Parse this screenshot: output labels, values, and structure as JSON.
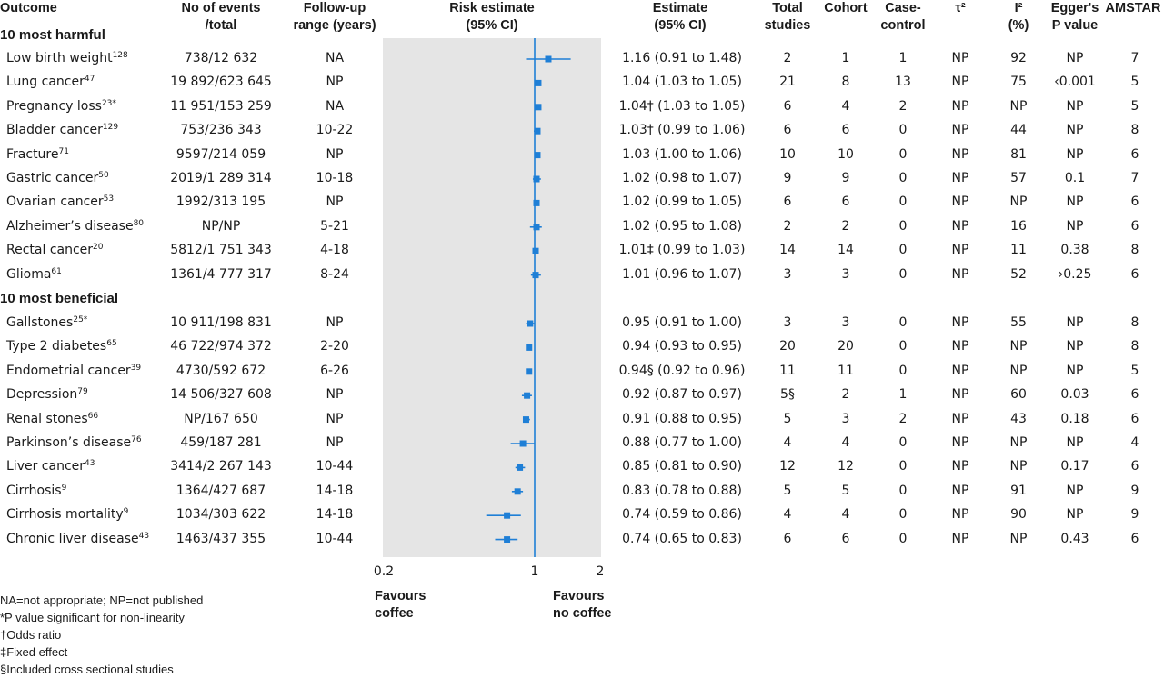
{
  "headers": {
    "outcome": "Outcome",
    "events": [
      "No of events",
      "/total"
    ],
    "followup": [
      "Follow-up",
      "range (years)"
    ],
    "risk": [
      "Risk estimate",
      "(95% CI)"
    ],
    "estimate": [
      "Estimate",
      "(95% CI)"
    ],
    "total": [
      "Total",
      "studies"
    ],
    "cohort": "Cohort",
    "casecontrol": [
      "Case-",
      "control"
    ],
    "tau": "τ²",
    "i2": [
      "I²",
      "(%)"
    ],
    "egger": [
      "Egger's",
      "P value"
    ],
    "amstar": "AMSTAR"
  },
  "sections": {
    "harmful": "10 most harmful",
    "beneficial": "10 most beneficial"
  },
  "rows": [
    {
      "outcome": "Low birth weight",
      "ref": "128",
      "events": "738/12 632",
      "followup": "NA",
      "estimate": "1.16 (0.91 to 1.48)",
      "total": "2",
      "cohort": "1",
      "casecontrol": "1",
      "tau": "NP",
      "i2": "92",
      "egger": "NP",
      "amstar": "7"
    },
    {
      "outcome": "Lung cancer",
      "ref": "47",
      "events": "19 892/623 645",
      "followup": "NP",
      "estimate": "1.04 (1.03 to 1.05)",
      "total": "21",
      "cohort": "8",
      "casecontrol": "13",
      "tau": "NP",
      "i2": "75",
      "egger": "‹0.001",
      "amstar": "5"
    },
    {
      "outcome": "Pregnancy loss",
      "ref": "23*",
      "events": "11 951/153 259",
      "followup": "NA",
      "estimate": "1.04† (1.03 to 1.05)",
      "total": "6",
      "cohort": "4",
      "casecontrol": "2",
      "tau": "NP",
      "i2": "NP",
      "egger": "NP",
      "amstar": "5"
    },
    {
      "outcome": "Bladder cancer",
      "ref": "129",
      "events": "753/236 343",
      "followup": "10-22",
      "estimate": "1.03† (0.99 to 1.06)",
      "total": "6",
      "cohort": "6",
      "casecontrol": "0",
      "tau": "NP",
      "i2": "44",
      "egger": "NP",
      "amstar": "8"
    },
    {
      "outcome": "Fracture",
      "ref": "71",
      "events": "9597/214 059",
      "followup": "NP",
      "estimate": "1.03 (1.00 to 1.06)",
      "total": "10",
      "cohort": "10",
      "casecontrol": "0",
      "tau": "NP",
      "i2": "81",
      "egger": "NP",
      "amstar": "6"
    },
    {
      "outcome": "Gastric cancer",
      "ref": "50",
      "events": "2019/1 289 314",
      "followup": "10-18",
      "estimate": "1.02 (0.98 to 1.07)",
      "total": "9",
      "cohort": "9",
      "casecontrol": "0",
      "tau": "NP",
      "i2": "57",
      "egger": "0.1",
      "amstar": "7"
    },
    {
      "outcome": "Ovarian cancer",
      "ref": "53",
      "events": "1992/313 195",
      "followup": "NP",
      "estimate": "1.02 (0.99 to 1.05)",
      "total": "6",
      "cohort": "6",
      "casecontrol": "0",
      "tau": "NP",
      "i2": "NP",
      "egger": "NP",
      "amstar": "6"
    },
    {
      "outcome": "Alzheimer’s disease",
      "ref": "80",
      "events": "NP/NP",
      "followup": "5-21",
      "estimate": "1.02 (0.95 to 1.08)",
      "total": "2",
      "cohort": "2",
      "casecontrol": "0",
      "tau": "NP",
      "i2": "16",
      "egger": "NP",
      "amstar": "6"
    },
    {
      "outcome": "Rectal cancer",
      "ref": "20",
      "events": "5812/1 751 343",
      "followup": "4-18",
      "estimate": "1.01‡ (0.99 to 1.03)",
      "total": "14",
      "cohort": "14",
      "casecontrol": "0",
      "tau": "NP",
      "i2": "11",
      "egger": "0.38",
      "amstar": "8"
    },
    {
      "outcome": "Glioma",
      "ref": "61",
      "events": "1361/4 777 317",
      "followup": "8-24",
      "estimate": "1.01 (0.96 to 1.07)",
      "total": "3",
      "cohort": "3",
      "casecontrol": "0",
      "tau": "NP",
      "i2": "52",
      "egger": "›0.25",
      "amstar": "6"
    },
    {
      "outcome": "Gallstones",
      "ref": "25*",
      "events": "10 911/198 831",
      "followup": "NP",
      "estimate": "0.95 (0.91 to 1.00)",
      "total": "3",
      "cohort": "3",
      "casecontrol": "0",
      "tau": "NP",
      "i2": "55",
      "egger": "NP",
      "amstar": "8"
    },
    {
      "outcome": "Type 2 diabetes",
      "ref": "65",
      "events": "46 722/974 372",
      "followup": "2-20",
      "estimate": "0.94 (0.93 to 0.95)",
      "total": "20",
      "cohort": "20",
      "casecontrol": "0",
      "tau": "NP",
      "i2": "NP",
      "egger": "NP",
      "amstar": "8"
    },
    {
      "outcome": "Endometrial cancer",
      "ref": "39",
      "events": "4730/592 672",
      "followup": "6-26",
      "estimate": "0.94§ (0.92 to 0.96)",
      "total": "11",
      "cohort": "11",
      "casecontrol": "0",
      "tau": "NP",
      "i2": "NP",
      "egger": "NP",
      "amstar": "5"
    },
    {
      "outcome": "Depression",
      "ref": "79",
      "events": "14 506/327 608",
      "followup": "NP",
      "estimate": "0.92 (0.87 to 0.97)",
      "total": "5§",
      "cohort": "2",
      "casecontrol": "1",
      "tau": "NP",
      "i2": "60",
      "egger": "0.03",
      "amstar": "6"
    },
    {
      "outcome": "Renal stones",
      "ref": "66",
      "events": "NP/167 650",
      "followup": "NP",
      "estimate": "0.91 (0.88 to 0.95)",
      "total": "5",
      "cohort": "3",
      "casecontrol": "2",
      "tau": "NP",
      "i2": "43",
      "egger": "0.18",
      "amstar": "6"
    },
    {
      "outcome": "Parkinson’s disease",
      "ref": "76",
      "events": "459/187 281",
      "followup": "NP",
      "estimate": "0.88 (0.77 to 1.00)",
      "total": "4",
      "cohort": "4",
      "casecontrol": "0",
      "tau": "NP",
      "i2": "NP",
      "egger": "NP",
      "amstar": "4"
    },
    {
      "outcome": "Liver cancer",
      "ref": "43",
      "events": "3414/2 267 143",
      "followup": "10-44",
      "estimate": "0.85 (0.81 to 0.90)",
      "total": "12",
      "cohort": "12",
      "casecontrol": "0",
      "tau": "NP",
      "i2": "NP",
      "egger": "0.17",
      "amstar": "6"
    },
    {
      "outcome": "Cirrhosis",
      "ref": "9",
      "events": "1364/427 687",
      "followup": "14-18",
      "estimate": "0.83 (0.78 to 0.88)",
      "total": "5",
      "cohort": "5",
      "casecontrol": "0",
      "tau": "NP",
      "i2": "91",
      "egger": "NP",
      "amstar": "9"
    },
    {
      "outcome": "Cirrhosis mortality",
      "ref": "9",
      "events": "1034/303 622",
      "followup": "14-18",
      "estimate": "0.74 (0.59 to 0.86)",
      "total": "4",
      "cohort": "4",
      "casecontrol": "0",
      "tau": "NP",
      "i2": "90",
      "egger": "NP",
      "amstar": "9"
    },
    {
      "outcome": "Chronic liver disease",
      "ref": "43",
      "events": "1463/437 355",
      "followup": "10-44",
      "estimate": "0.74 (0.65 to 0.83)",
      "total": "6",
      "cohort": "6",
      "casecontrol": "0",
      "tau": "NP",
      "i2": "NP",
      "egger": "0.43",
      "amstar": "6"
    }
  ],
  "axis": {
    "ticks": [
      "0.2",
      "1",
      "2"
    ],
    "favours_left": [
      "Favours",
      "coffee"
    ],
    "favours_right": [
      "Favours",
      "no coffee"
    ]
  },
  "footnotes": [
    "NA=not appropriate; NP=not published",
    "*P value significant for non-linearity",
    "†Odds ratio",
    "‡Fixed effect",
    "§Included cross sectional studies"
  ],
  "colors": {
    "marker": "#1f7fd6",
    "reference_line": "#1f7fd6",
    "plot_bg": "#e5e5e5"
  },
  "chart_data": {
    "type": "forest",
    "scale": "log",
    "xlim": [
      0.2,
      2
    ],
    "reference": 1,
    "xticks": [
      0.2,
      1,
      2
    ],
    "grid": false,
    "categories": [
      "Low birth weight",
      "Lung cancer",
      "Pregnancy loss",
      "Bladder cancer",
      "Fracture",
      "Gastric cancer",
      "Ovarian cancer",
      "Alzheimer’s disease",
      "Rectal cancer",
      "Glioma",
      "Gallstones",
      "Type 2 diabetes",
      "Endometrial cancer",
      "Depression",
      "Renal stones",
      "Parkinson’s disease",
      "Liver cancer",
      "Cirrhosis",
      "Cirrhosis mortality",
      "Chronic liver disease"
    ],
    "estimate": [
      1.16,
      1.04,
      1.04,
      1.03,
      1.03,
      1.02,
      1.02,
      1.02,
      1.01,
      1.01,
      0.95,
      0.94,
      0.94,
      0.92,
      0.91,
      0.88,
      0.85,
      0.83,
      0.74,
      0.74
    ],
    "lower": [
      0.91,
      1.03,
      1.03,
      0.99,
      1.0,
      0.98,
      0.99,
      0.95,
      0.99,
      0.96,
      0.91,
      0.93,
      0.92,
      0.87,
      0.88,
      0.77,
      0.81,
      0.78,
      0.59,
      0.65
    ],
    "upper": [
      1.48,
      1.05,
      1.05,
      1.06,
      1.06,
      1.07,
      1.05,
      1.08,
      1.03,
      1.07,
      1.0,
      0.95,
      0.96,
      0.97,
      0.95,
      1.0,
      0.9,
      0.88,
      0.86,
      0.83
    ]
  }
}
